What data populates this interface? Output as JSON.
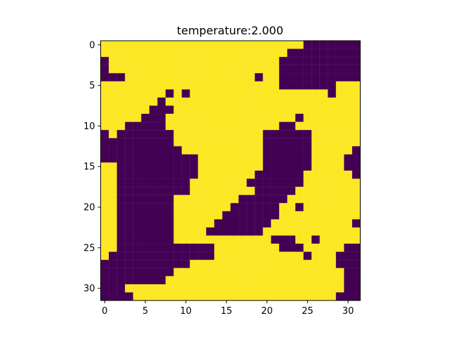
{
  "chart_data": {
    "type": "heatmap",
    "title": "temperature:2.000",
    "xlabel": "",
    "ylabel": "",
    "colormap": "viridis",
    "colors": {
      "low": "#440154",
      "high": "#fde725"
    },
    "x_ticks": [
      0,
      5,
      10,
      15,
      20,
      25,
      30
    ],
    "y_ticks": [
      0,
      5,
      10,
      15,
      20,
      25,
      30
    ],
    "y_axis_inverted": true,
    "grid": false,
    "shape": [
      32,
      32
    ],
    "values_encoding": "one string per row, '1' = yellow (high), '0' = purple (low)",
    "rows": [
      "11111111111111111111111110000000",
      "11111111111111111111111000000000",
      "01111111111111111111110000000000",
      "01111111111111111111110000000000",
      "00011111111111111110110000000000",
      "11111111111111111111110000000111",
      "11111111010111111111111111110111",
      "11111110111111111111111111111111",
      "11111100011111111111111111111111",
      "11111000111111111111111101111111",
      "11100000111111111111110011111111",
      "01000000011111111111000000111111",
      "00000000011111111111000000111111",
      "00000000001111111111000000111110",
      "00000000000011111111000000111100",
      "11000000000011111111000000111100",
      "11000000000011111110000001111110",
      "11000000000111111100000001111111",
      "11000000000111111110000011111111",
      "11000000011111111000000111111111",
      "11000000011111110000001101111111",
      "11000000011111100000001111111111",
      "11000000011111000000011111111110",
      "11000000011110000000111111111111",
      "11000000011111111111100011011111",
      "11000000000000111111110001111100",
      "10000000000000111111111110111000",
      "00000000000111111111111111111000",
      "00000000011111111111111111111100",
      "00000000111111111111111111111100",
      "00011111111111111111111111111100",
      "00001111111111111111111111111000"
    ]
  }
}
